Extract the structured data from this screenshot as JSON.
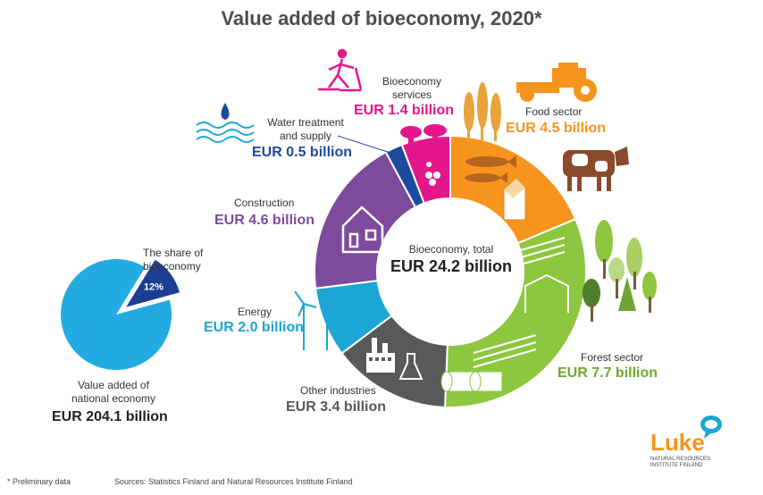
{
  "title": "Value added of bioeconomy, 2020*",
  "center": {
    "label": "Bioeconomy, total",
    "value": "EUR 24.2 billion"
  },
  "colors": {
    "food": "#F7941D",
    "forest": "#8DC63F",
    "other": "#58595B",
    "energy": "#1BA6D3",
    "construction": "#7E4B9C",
    "water": "#1C4AA0",
    "services": "#E5168C",
    "pie_main": "#21ABE1",
    "pie_slice": "#1C3F94"
  },
  "chart_data": [
    {
      "type": "pie",
      "variant": "donut",
      "categories": [
        "Food sector",
        "Forest sector",
        "Other industries",
        "Energy",
        "Construction",
        "Water treatment and supply",
        "Bioeconomy services"
      ],
      "values": [
        4.5,
        7.7,
        3.4,
        2.0,
        4.6,
        0.5,
        1.4
      ],
      "unit": "EUR billion",
      "total": 24.2,
      "labels": [
        {
          "name": "Food sector",
          "value": "EUR 4.5 billion"
        },
        {
          "name": "Forest sector",
          "value": "EUR 7.7 billion"
        },
        {
          "name": "Other industries",
          "value": "EUR 3.4 billion"
        },
        {
          "name": "Energy",
          "value": "EUR 2.0 billion"
        },
        {
          "name": "Construction",
          "value": "EUR 4.6 billion"
        },
        {
          "name": "Water treatment and supply",
          "value": "EUR 0.5 billion"
        },
        {
          "name": "Bioeconomy services",
          "value": "EUR 1.4 billion"
        }
      ],
      "icons": [
        "tractor-icon",
        "wheat-icon",
        "fish-icon",
        "milk-carton-icon",
        "cow-icon",
        "tree-icon",
        "log-pile-icon",
        "paper-roll-icon",
        "factory-icon",
        "flask-icon",
        "wind-turbine-icon",
        "house-icon",
        "water-drop-icon",
        "waves-icon",
        "mushroom-icon",
        "berries-icon",
        "skier-icon"
      ]
    },
    {
      "type": "pie",
      "categories": [
        "Bioeconomy",
        "Rest of national economy"
      ],
      "values": [
        12,
        88
      ],
      "unit": "%",
      "slice_label": "12%",
      "share_label": "The share of bioeconomy",
      "total_label": "Value added of national economy",
      "total_value": "EUR 204.1 billion"
    }
  ],
  "labels": {
    "services_name": "Bioeconomy services",
    "water_name": "Water treatment and supply",
    "construction_name": "Construction",
    "energy_name": "Energy",
    "other_name": "Other industries",
    "food_name": "Food sector",
    "forest_name": "Forest sector"
  },
  "share": {
    "title": "The share of bioeconomy",
    "national_label": "Value added of national economy",
    "national_value": "EUR 204.1 billion"
  },
  "logo": {
    "name": "Luke",
    "subtitle": "NATURAL RESOURCES INSTITUTE FINLAND"
  },
  "footer": {
    "note": "* Preliminary data",
    "sources": "Sources: Statistics Finland and Natural Resources Institute Finland"
  }
}
